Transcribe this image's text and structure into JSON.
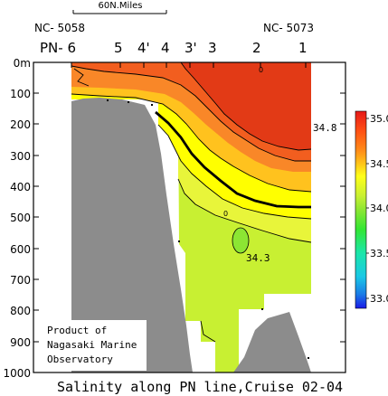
{
  "chart_data": {
    "type": "heatmap",
    "title": "Salinity along PN line,Cruise 02-04",
    "scale_label": "60N.Miles",
    "stations_top": {
      "left": "NC- 5058",
      "right": "NC- 5073"
    },
    "station_labels": [
      "PN- 6",
      "5",
      "4'",
      "4",
      "3'",
      "3",
      "2",
      "1"
    ],
    "y_ticks": [
      "0m",
      "100",
      "200",
      "300",
      "400",
      "500",
      "600",
      "700",
      "800",
      "900",
      "1000"
    ],
    "ylim": [
      0,
      1000
    ],
    "colorbar": {
      "ticks": [
        "35.0",
        "34.5",
        "34.0",
        "33.5",
        "33.0"
      ],
      "range": [
        32.9,
        35.1
      ],
      "colors": [
        "#1a1ae6",
        "#1a7ae6",
        "#1ac8e6",
        "#1ae6aa",
        "#33e633",
        "#8ce633",
        "#c8f033",
        "#ffff19",
        "#ffc819",
        "#ff8c19",
        "#ff5014",
        "#e61919"
      ]
    },
    "contour_labels": [
      "34.8",
      "34.3",
      "0"
    ],
    "annotation": [
      "Product of",
      "Nagasaki Marine",
      "Observatory"
    ],
    "palette": {
      "bathymetry": "#8c8c8c",
      "s_348": "#e23a16",
      "s_346": "#f25e1f",
      "s_345": "#f98728",
      "s_344": "#ffc21e",
      "s_343": "#ffff00",
      "s_342": "#e8f53a",
      "s_340": "#c8f032"
    }
  }
}
